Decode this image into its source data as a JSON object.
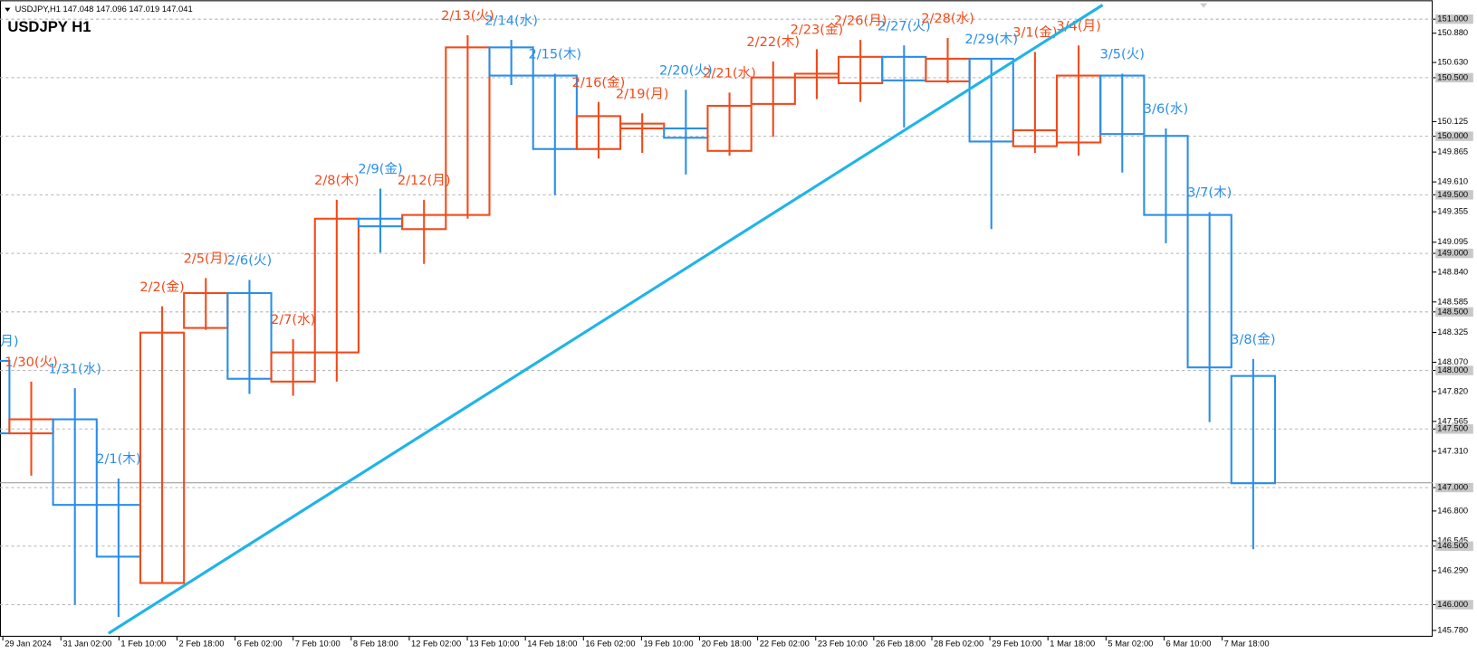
{
  "chart_data": {
    "type": "daily-boxes",
    "header": "USDJPY,H1  147.048 147.096 147.019 147.041",
    "title": "USDJPY H1",
    "up_color": "#f24a1a",
    "down_color": "#2a8ee8",
    "days": [
      {
        "label": "月)",
        "open": 148.082,
        "high": 148.082,
        "low": 147.463,
        "close": 147.463
      },
      {
        "label": "1/30(火)",
        "open": 147.463,
        "high": 147.905,
        "low": 147.101,
        "close": 147.583
      },
      {
        "label": "1/31(水)",
        "open": 147.583,
        "high": 147.849,
        "low": 146.0,
        "close": 146.852
      },
      {
        "label": "2/1(木)",
        "open": 146.852,
        "high": 147.077,
        "low": 145.895,
        "close": 146.41
      },
      {
        "label": "2/2(金)",
        "open": 146.185,
        "high": 148.548,
        "low": 146.177,
        "close": 148.323
      },
      {
        "label": "2/5(月)",
        "open": 148.363,
        "high": 148.789,
        "low": 148.347,
        "close": 148.661
      },
      {
        "label": "2/6(火)",
        "open": 148.661,
        "high": 148.773,
        "low": 147.8,
        "close": 147.929
      },
      {
        "label": "2/7(水)",
        "open": 147.905,
        "high": 148.267,
        "low": 147.784,
        "close": 148.154
      },
      {
        "label": "2/8(木)",
        "open": 148.154,
        "high": 149.457,
        "low": 147.905,
        "close": 149.296
      },
      {
        "label": "2/9(金)",
        "open": 149.296,
        "high": 149.553,
        "low": 149.006,
        "close": 149.231
      },
      {
        "label": "2/12(月)",
        "open": 149.207,
        "high": 149.457,
        "low": 148.91,
        "close": 149.328
      },
      {
        "label": "2/13(火)",
        "open": 149.328,
        "high": 150.863,
        "low": 149.296,
        "close": 150.759
      },
      {
        "label": "2/14(水)",
        "open": 150.759,
        "high": 150.823,
        "low": 150.437,
        "close": 150.518
      },
      {
        "label": "2/15(木)",
        "open": 150.518,
        "high": 150.534,
        "low": 149.497,
        "close": 149.891
      },
      {
        "label": "2/16(金)",
        "open": 149.891,
        "high": 150.293,
        "low": 149.81,
        "close": 150.172
      },
      {
        "label": "2/19(月)",
        "open": 150.067,
        "high": 150.196,
        "low": 149.858,
        "close": 150.108
      },
      {
        "label": "2/20(火)",
        "open": 150.067,
        "high": 150.397,
        "low": 149.674,
        "close": 149.987
      },
      {
        "label": "2/21(水)",
        "open": 149.875,
        "high": 150.373,
        "low": 149.834,
        "close": 150.26
      },
      {
        "label": "2/22(木)",
        "open": 150.276,
        "high": 150.638,
        "low": 149.995,
        "close": 150.502
      },
      {
        "label": "2/23(金)",
        "open": 150.502,
        "high": 150.743,
        "low": 150.317,
        "close": 150.534
      },
      {
        "label": "2/26(月)",
        "open": 150.453,
        "high": 150.823,
        "low": 150.293,
        "close": 150.678
      },
      {
        "label": "2/27(火)",
        "open": 150.678,
        "high": 150.775,
        "low": 150.075,
        "close": 150.477
      },
      {
        "label": "2/28(水)",
        "open": 150.469,
        "high": 150.839,
        "low": 150.453,
        "close": 150.662
      },
      {
        "label": "2/29(木)",
        "open": 150.662,
        "high": 150.662,
        "low": 149.207,
        "close": 149.955
      },
      {
        "label": "3/1(金)",
        "open": 149.915,
        "high": 150.719,
        "low": 149.858,
        "close": 150.051
      },
      {
        "label": "3/4(月)",
        "open": 149.947,
        "high": 150.775,
        "low": 149.834,
        "close": 150.518
      },
      {
        "label": "3/5(火)",
        "open": 150.518,
        "high": 150.534,
        "low": 149.69,
        "close": 150.019
      },
      {
        "label": "3/6(水)",
        "open": 150.003,
        "high": 150.067,
        "low": 149.087,
        "close": 149.328
      },
      {
        "label": "3/7(木)",
        "open": 149.328,
        "high": 149.352,
        "low": 147.559,
        "close": 148.026
      },
      {
        "label": "3/8(金)",
        "open": 147.953,
        "high": 148.098,
        "low": 146.474,
        "close": 147.037
      }
    ],
    "trendline": {
      "x": [
        3.27,
        26.05
      ],
      "y": [
        145.755,
        151.121
      ],
      "color": "#1fb4e8"
    },
    "last_price": 147.041,
    "time_labels": [
      "29 Jan 2024",
      "31 Jan 02:00",
      "1 Feb 10:00",
      "2 Feb 18:00",
      "6 Feb 02:00",
      "7 Feb 10:00",
      "8 Feb 18:00",
      "12 Feb 02:00",
      "13 Feb 10:00",
      "14 Feb 18:00",
      "16 Feb 02:00",
      "19 Feb 10:00",
      "20 Feb 18:00",
      "22 Feb 02:00",
      "23 Feb 10:00",
      "26 Feb 18:00",
      "28 Feb 02:00",
      "29 Feb 10:00",
      "1 Mar 18:00",
      "5 Mar 02:00",
      "6 Mar 10:00",
      "7 Mar 18:00"
    ],
    "ylim": [
      145.726,
      151.161
    ],
    "yticks": [
      {
        "value": 151.0,
        "label": "151.000"
      },
      {
        "value": 150.88,
        "label": "150.880"
      },
      {
        "value": 150.63,
        "label": "150.630"
      },
      {
        "value": 150.5,
        "label": "150.500"
      },
      {
        "value": 150.125,
        "label": "150.125"
      },
      {
        "value": 150.0,
        "label": "150.000"
      },
      {
        "value": 149.865,
        "label": "149.865"
      },
      {
        "value": 149.61,
        "label": "149.610"
      },
      {
        "value": 149.5,
        "label": "149.500"
      },
      {
        "value": 149.355,
        "label": "149.355"
      },
      {
        "value": 149.095,
        "label": "149.095"
      },
      {
        "value": 149.0,
        "label": "149.000"
      },
      {
        "value": 148.84,
        "label": "148.840"
      },
      {
        "value": 148.585,
        "label": "148.585"
      },
      {
        "value": 148.5,
        "label": "148.500"
      },
      {
        "value": 148.325,
        "label": "148.325"
      },
      {
        "value": 148.07,
        "label": "148.070"
      },
      {
        "value": 148.0,
        "label": "148.000"
      },
      {
        "value": 147.82,
        "label": "147.820"
      },
      {
        "value": 147.565,
        "label": "147.565"
      },
      {
        "value": 147.5,
        "label": "147.500"
      },
      {
        "value": 147.31,
        "label": "147.310"
      },
      {
        "value": 147.0,
        "label": "147.000"
      },
      {
        "value": 146.8,
        "label": "146.800"
      },
      {
        "value": 146.545,
        "label": "146.545"
      },
      {
        "value": 146.5,
        "label": "146.500"
      },
      {
        "value": 146.29,
        "label": "146.290"
      },
      {
        "value": 146.0,
        "label": "146.000"
      },
      {
        "value": 145.78,
        "label": "145.780"
      }
    ],
    "grid": true
  }
}
